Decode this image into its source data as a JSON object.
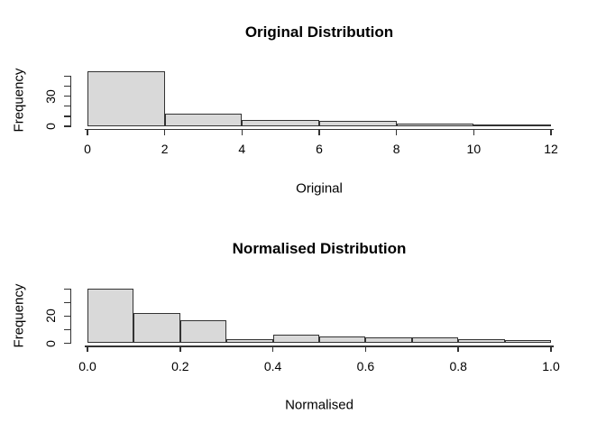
{
  "figure": {
    "background": "#ffffff",
    "colors": {
      "bar_fill": "#d9d9d9",
      "bar_border": "#333333",
      "axis_line": "#333333",
      "text": "#000000"
    }
  },
  "chart_data": [
    {
      "type": "bar",
      "subtype": "histogram",
      "title": "Original Distribution",
      "xlabel": "Original",
      "ylabel": "Frequency",
      "bin_edges": [
        0,
        2,
        4,
        6,
        8,
        10,
        12
      ],
      "counts": [
        55,
        13,
        6,
        5,
        3,
        2
      ],
      "xlim": [
        0,
        12
      ],
      "ylim": [
        0,
        57.5
      ],
      "grid": false,
      "legend": false,
      "x_ticks": [
        {
          "value": 0,
          "label": "0"
        },
        {
          "value": 2,
          "label": "2"
        },
        {
          "value": 4,
          "label": "4"
        },
        {
          "value": 6,
          "label": "6"
        },
        {
          "value": 8,
          "label": "8"
        },
        {
          "value": 10,
          "label": "10"
        },
        {
          "value": 12,
          "label": "12"
        }
      ],
      "y_ticks": [
        {
          "value": 0,
          "label": "0"
        },
        {
          "value": 10,
          "label": ""
        },
        {
          "value": 20,
          "label": ""
        },
        {
          "value": 30,
          "label": "30"
        },
        {
          "value": 40,
          "label": ""
        },
        {
          "value": 50,
          "label": ""
        }
      ]
    },
    {
      "type": "bar",
      "subtype": "histogram",
      "title": "Normalised Distribution",
      "xlabel": "Normalised",
      "ylabel": "Frequency",
      "bin_edges": [
        0,
        0.1,
        0.2,
        0.3,
        0.4,
        0.5,
        0.6,
        0.7,
        0.8,
        0.9,
        1.0
      ],
      "counts": [
        40,
        22,
        17,
        3,
        6,
        5,
        4,
        4,
        3,
        2
      ],
      "xlim": [
        0,
        1
      ],
      "ylim": [
        0,
        41.6
      ],
      "grid": false,
      "legend": false,
      "x_ticks": [
        {
          "value": 0.0,
          "label": "0.0"
        },
        {
          "value": 0.2,
          "label": "0.2"
        },
        {
          "value": 0.4,
          "label": "0.4"
        },
        {
          "value": 0.6,
          "label": "0.6"
        },
        {
          "value": 0.8,
          "label": "0.8"
        },
        {
          "value": 1.0,
          "label": "1.0"
        }
      ],
      "y_ticks": [
        {
          "value": 0,
          "label": "0"
        },
        {
          "value": 10,
          "label": ""
        },
        {
          "value": 20,
          "label": "20"
        },
        {
          "value": 30,
          "label": ""
        },
        {
          "value": 40,
          "label": ""
        }
      ]
    }
  ]
}
